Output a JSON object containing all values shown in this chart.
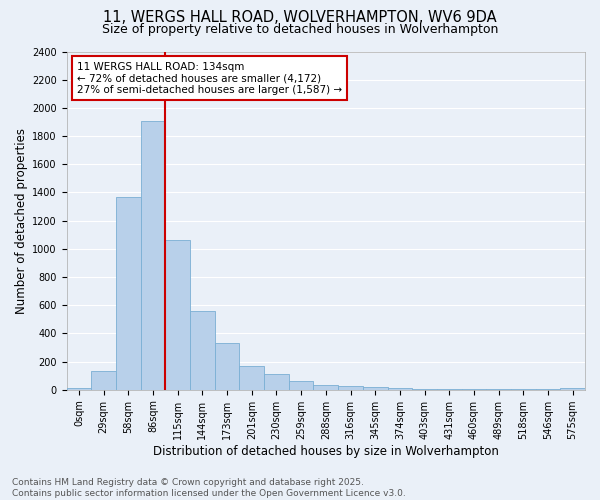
{
  "title_line1": "11, WERGS HALL ROAD, WOLVERHAMPTON, WV6 9DA",
  "title_line2": "Size of property relative to detached houses in Wolverhampton",
  "xlabel": "Distribution of detached houses by size in Wolverhampton",
  "ylabel": "Number of detached properties",
  "bar_labels": [
    "0sqm",
    "29sqm",
    "58sqm",
    "86sqm",
    "115sqm",
    "144sqm",
    "173sqm",
    "201sqm",
    "230sqm",
    "259sqm",
    "288sqm",
    "316sqm",
    "345sqm",
    "374sqm",
    "403sqm",
    "431sqm",
    "460sqm",
    "489sqm",
    "518sqm",
    "546sqm",
    "575sqm"
  ],
  "bar_values": [
    10,
    130,
    1370,
    1910,
    1060,
    560,
    335,
    165,
    110,
    60,
    35,
    25,
    20,
    15,
    8,
    5,
    5,
    3,
    2,
    2,
    10
  ],
  "bar_color": "#b8d0ea",
  "bar_edge_color": "#7aafd4",
  "background_color": "#eaf0f8",
  "grid_color": "#ffffff",
  "vline_x_index": 3.5,
  "vline_color": "#cc0000",
  "annotation_text": "11 WERGS HALL ROAD: 134sqm\n← 72% of detached houses are smaller (4,172)\n27% of semi-detached houses are larger (1,587) →",
  "annotation_box_color": "#ffffff",
  "annotation_border_color": "#cc0000",
  "ylim": [
    0,
    2400
  ],
  "yticks": [
    0,
    200,
    400,
    600,
    800,
    1000,
    1200,
    1400,
    1600,
    1800,
    2000,
    2200,
    2400
  ],
  "footer_line1": "Contains HM Land Registry data © Crown copyright and database right 2025.",
  "footer_line2": "Contains public sector information licensed under the Open Government Licence v3.0.",
  "title_fontsize": 10.5,
  "subtitle_fontsize": 9,
  "axis_label_fontsize": 8.5,
  "tick_fontsize": 7,
  "annotation_fontsize": 7.5,
  "footer_fontsize": 6.5
}
